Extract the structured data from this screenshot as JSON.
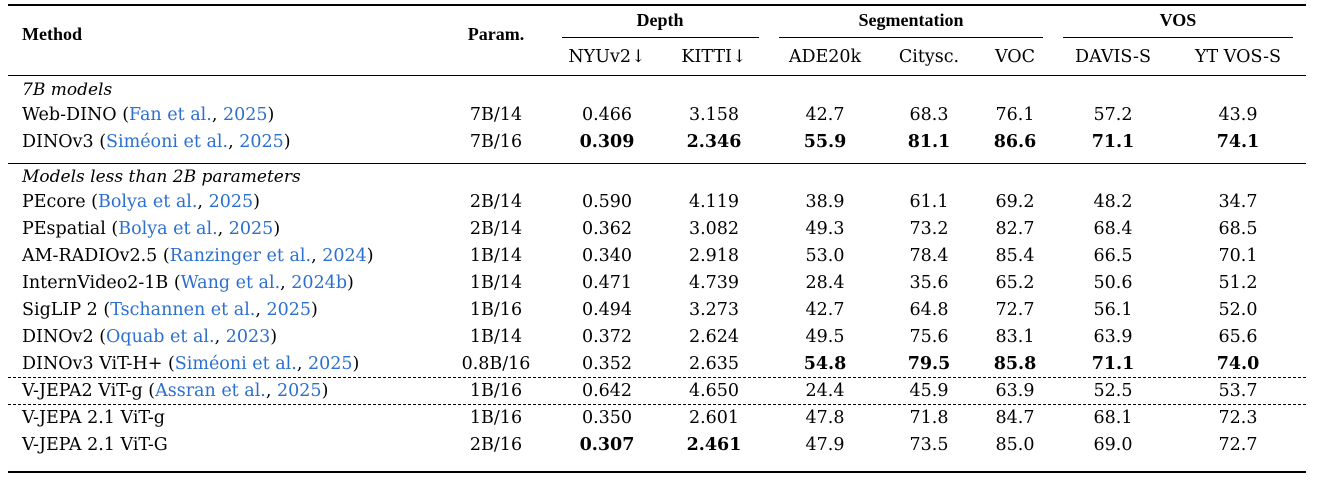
{
  "table": {
    "headers": {
      "method": "Method",
      "params": "Param.",
      "groups": [
        {
          "label": "Depth",
          "cols": [
            "NYUv2↓",
            "KITTI↓"
          ]
        },
        {
          "label": "Segmentation",
          "cols": [
            "ADE20k",
            "Citysc.",
            "VOC"
          ]
        },
        {
          "label": "VOS",
          "cols": [
            "DAVIS-S",
            "YT VOS-S"
          ]
        }
      ]
    },
    "sections": [
      {
        "title": "7B models",
        "rows": [
          {
            "name": "Web-DINO",
            "cite_authors": "Fan et al.",
            "cite_year": "2025",
            "params": "7B/14",
            "values": [
              "0.466",
              "3.158",
              "42.7",
              "68.3",
              "76.1",
              "57.2",
              "43.9"
            ],
            "bold": []
          },
          {
            "name": "DINOv3",
            "cite_authors": "Siméoni et al.",
            "cite_year": "2025",
            "params": "7B/16",
            "values": [
              "0.309",
              "2.346",
              "55.9",
              "81.1",
              "86.6",
              "71.1",
              "74.1"
            ],
            "bold": [
              0,
              1,
              2,
              3,
              4,
              5,
              6
            ]
          }
        ]
      },
      {
        "title": "Models less than 2B parameters",
        "rows": [
          {
            "name": "PEcore",
            "cite_authors": "Bolya et al.",
            "cite_year": "2025",
            "params": "2B/14",
            "values": [
              "0.590",
              "4.119",
              "38.9",
              "61.1",
              "69.2",
              "48.2",
              "34.7"
            ],
            "bold": []
          },
          {
            "name": "PEspatial",
            "cite_authors": "Bolya et al.",
            "cite_year": "2025",
            "params": "2B/14",
            "values": [
              "0.362",
              "3.082",
              "49.3",
              "73.2",
              "82.7",
              "68.4",
              "68.5"
            ],
            "bold": []
          },
          {
            "name": "AM-RADIOv2.5",
            "cite_authors": "Ranzinger et al.",
            "cite_year": "2024",
            "params": "1B/14",
            "values": [
              "0.340",
              "2.918",
              "53.0",
              "78.4",
              "85.4",
              "66.5",
              "70.1"
            ],
            "bold": []
          },
          {
            "name": "InternVideo2-1B",
            "cite_authors": "Wang et al.",
            "cite_year": "2024b",
            "params": "1B/14",
            "values": [
              "0.471",
              "4.739",
              "28.4",
              "35.6",
              "65.2",
              "50.6",
              "51.2"
            ],
            "bold": []
          },
          {
            "name": "SigLIP 2",
            "cite_authors": "Tschannen et al.",
            "cite_year": "2025",
            "params": "1B/16",
            "values": [
              "0.494",
              "3.273",
              "42.7",
              "64.8",
              "72.7",
              "56.1",
              "52.0"
            ],
            "bold": []
          },
          {
            "name": "DINOv2",
            "cite_authors": "Oquab et al.",
            "cite_year": "2023",
            "params": "1B/14",
            "values": [
              "0.372",
              "2.624",
              "49.5",
              "75.6",
              "83.1",
              "63.9",
              "65.6"
            ],
            "bold": []
          },
          {
            "name": "DINOv3 ViT-H+",
            "cite_authors": "Siméoni et al.",
            "cite_year": "2025",
            "params": "0.8B/16",
            "values": [
              "0.352",
              "2.635",
              "54.8",
              "79.5",
              "85.8",
              "71.1",
              "74.0"
            ],
            "bold": [
              2,
              3,
              4,
              5,
              6
            ]
          },
          {
            "name": "V-JEPA2 ViT-g",
            "cite_authors": "Assran et al.",
            "cite_year": "2025",
            "params": "1B/16",
            "values": [
              "0.642",
              "4.650",
              "24.4",
              "45.9",
              "63.9",
              "52.5",
              "53.7"
            ],
            "bold": []
          },
          {
            "name": "V-JEPA 2.1 ViT-g",
            "cite_authors": "",
            "cite_year": "",
            "params": "1B/16",
            "values": [
              "0.350",
              "2.601",
              "47.8",
              "71.8",
              "84.7",
              "68.1",
              "72.3"
            ],
            "bold": []
          },
          {
            "name": "V-JEPA 2.1 ViT-G",
            "cite_authors": "",
            "cite_year": "",
            "params": "2B/16",
            "values": [
              "0.307",
              "2.461",
              "47.9",
              "73.5",
              "85.0",
              "69.0",
              "72.7"
            ],
            "bold": [
              0,
              1
            ]
          }
        ]
      }
    ]
  }
}
